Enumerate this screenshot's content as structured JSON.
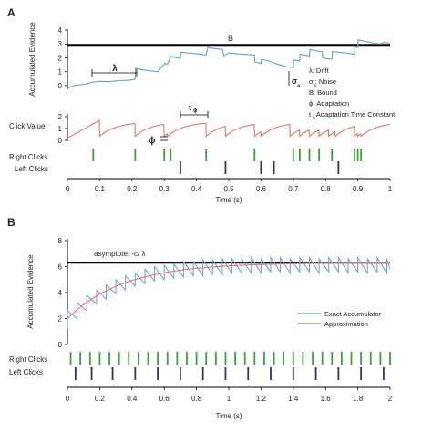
{
  "panels": {
    "a": {
      "letter": "A",
      "ylabel": "Accumulated Evidence",
      "xlabel": "Time (s)",
      "bound_label": "B",
      "click_value_label": "Click Value",
      "right_clicks_label": "Right Clicks",
      "left_clicks_label": "Left Clicks",
      "annotations": {
        "lambda": "λ",
        "sigma": "σ",
        "sigma_sub": "a",
        "phi": "ϕ",
        "t": "t",
        "t_sub": "ϕ"
      },
      "legend": [
        "λ: Drift",
        "σ  : Noise",
        "B: Bound",
        "ϕ: Adaptation",
        "t  : Adaptation Time Constant"
      ],
      "legend_subs": [
        "a",
        "ϕ"
      ]
    },
    "b": {
      "letter": "B",
      "ylabel": "Accumulated Evidence",
      "xlabel": "Time (s)",
      "asymptote_label": "asymptote: -c/ λ",
      "right_clicks_label": "Right Clicks",
      "left_clicks_label": "Left Clicks"
    }
  },
  "chart_data": [
    {
      "type": "line",
      "panel": "A",
      "xlabel": "Time (s)",
      "ylabel": "Accumulated Evidence",
      "xlim": [
        0,
        1
      ],
      "ylim": [
        -0.6,
        4
      ],
      "x_ticks": [
        0,
        0.1,
        0.2,
        0.3,
        0.4,
        0.5,
        0.6,
        0.7,
        0.8,
        0.9,
        1
      ],
      "y_ticks": [
        0,
        1,
        2,
        3,
        4
      ],
      "bound": 2.9,
      "accumulator": {
        "x": [
          0,
          0.01,
          0.02,
          0.04,
          0.06,
          0.08,
          0.1,
          0.13,
          0.16,
          0.19,
          0.21,
          0.211,
          0.23,
          0.26,
          0.28,
          0.301,
          0.31,
          0.321,
          0.33,
          0.35,
          0.351,
          0.37,
          0.4,
          0.43,
          0.435,
          0.45,
          0.48,
          0.485,
          0.5,
          0.52,
          0.55,
          0.58,
          0.581,
          0.6,
          0.601,
          0.62,
          0.65,
          0.68,
          0.7,
          0.701,
          0.72,
          0.721,
          0.74,
          0.75,
          0.751,
          0.77,
          0.79,
          0.791,
          0.8,
          0.82,
          0.821,
          0.84,
          0.86,
          0.88,
          0.89,
          0.891,
          0.9,
          0.901,
          0.92,
          0.95,
          0.97,
          0.98,
          1
        ],
        "y": [
          -0.2,
          -0.1,
          0.0,
          0.05,
          0.12,
          0.25,
          0.3,
          0.28,
          0.35,
          0.38,
          0.45,
          1.25,
          1.15,
          1.05,
          1.0,
          1.6,
          1.55,
          2.1,
          2.05,
          1.95,
          2.4,
          2.35,
          2.3,
          2.2,
          2.75,
          2.68,
          2.6,
          2.15,
          2.35,
          2.3,
          2.25,
          2.2,
          1.7,
          1.6,
          1.9,
          1.8,
          1.55,
          1.35,
          1.3,
          1.85,
          1.78,
          2.25,
          2.2,
          2.1,
          2.6,
          2.5,
          2.45,
          2.0,
          1.95,
          1.9,
          2.45,
          2.4,
          2.35,
          2.3,
          2.25,
          2.8,
          2.75,
          3.3,
          3.2,
          3.05,
          3.0,
          3.1,
          3.05
        ]
      },
      "click_value_ticks": [
        0,
        1,
        2
      ],
      "click_value_peaks": [
        0.1,
        0.21,
        0.3,
        0.31,
        0.43,
        0.49,
        0.58,
        0.6,
        0.69,
        0.72,
        0.75,
        0.78,
        0.81,
        0.83,
        0.89,
        0.9,
        0.91
      ],
      "right_clicks": [
        0.08,
        0.21,
        0.3,
        0.32,
        0.43,
        0.58,
        0.7,
        0.72,
        0.75,
        0.78,
        0.82,
        0.89,
        0.9,
        0.91
      ],
      "left_clicks": [
        0.35,
        0.49,
        0.6,
        0.64,
        0.84
      ]
    },
    {
      "type": "line",
      "panel": "B",
      "xlabel": "Time (s)",
      "ylabel": "Accumulated Evidence",
      "xlim": [
        0,
        2
      ],
      "ylim": [
        0,
        8
      ],
      "x_ticks": [
        0,
        0.2,
        0.4,
        0.6,
        0.8,
        1,
        1.2,
        1.4,
        1.6,
        1.8,
        2
      ],
      "y_ticks": [
        0,
        2,
        4,
        6,
        8
      ],
      "asymptote": 6.3,
      "series": [
        {
          "name": "Exact Accumulator",
          "color": "#5ba3d9",
          "click_times": [
            0,
            0.06,
            0.12,
            0.18,
            0.24,
            0.3,
            0.36,
            0.42,
            0.48,
            0.54,
            0.6,
            0.66,
            0.72,
            0.78,
            0.84,
            0.9,
            0.96,
            1.02,
            1.08,
            1.14,
            1.2,
            1.26,
            1.32,
            1.38,
            1.44,
            1.5,
            1.56,
            1.62,
            1.68,
            1.74,
            1.8,
            1.86,
            1.92,
            1.98
          ],
          "pre_click": [
            1.2,
            2.0,
            2.6,
            3.1,
            3.5,
            3.9,
            4.2,
            4.5,
            4.7,
            4.9,
            5.0,
            5.1,
            5.2,
            5.3,
            5.3,
            5.4,
            5.4,
            5.5,
            5.5,
            5.5,
            5.5,
            5.6,
            5.6,
            5.5,
            5.6,
            5.6,
            5.5,
            5.6,
            5.6,
            5.5,
            5.6,
            5.5,
            5.6,
            5.5
          ],
          "post_click": [
            2.6,
            3.2,
            3.8,
            4.2,
            4.6,
            5.0,
            5.3,
            5.5,
            5.8,
            6.0,
            6.1,
            6.2,
            6.4,
            6.4,
            6.5,
            6.5,
            6.6,
            6.6,
            6.6,
            6.7,
            6.6,
            6.7,
            6.7,
            6.6,
            6.7,
            6.7,
            6.6,
            6.7,
            6.7,
            6.6,
            6.7,
            6.6,
            6.7,
            6.6
          ]
        },
        {
          "name": "Approximation",
          "color": "#e8736a",
          "function": "asymptote - (asymptote - 2.0) * exp(-t / 0.35)"
        }
      ],
      "right_clicks": [
        0.02,
        0.08,
        0.14,
        0.2,
        0.26,
        0.32,
        0.38,
        0.44,
        0.5,
        0.56,
        0.62,
        0.68,
        0.74,
        0.8,
        0.86,
        0.92,
        0.98,
        1.04,
        1.1,
        1.16,
        1.22,
        1.28,
        1.34,
        1.4,
        1.46,
        1.52,
        1.58,
        1.64,
        1.7,
        1.76,
        1.82,
        1.88,
        1.94,
        2.0
      ],
      "left_clicks": [
        0.05,
        0.15,
        0.28,
        0.42,
        0.56,
        0.7,
        0.84,
        0.98,
        1.12,
        1.26,
        1.4,
        1.54,
        1.68,
        1.82,
        1.96
      ]
    }
  ],
  "colors": {
    "accumulator": "#5ba3d9",
    "approximation": "#e8736a",
    "click_value": "#e8736a",
    "right_clicks": "#3aa335",
    "left_clicks": "#3b2a77",
    "bound": "#000000"
  }
}
